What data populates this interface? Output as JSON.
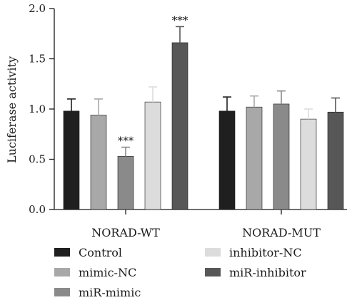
{
  "chart_data": {
    "type": "bar",
    "title": "",
    "xlabel": "",
    "ylabel": "Luciferase activity",
    "ylim": [
      0,
      2.0
    ],
    "yticks": [
      0.0,
      0.5,
      1.0,
      1.5,
      2.0
    ],
    "ytick_labels": [
      "0.0",
      "0.5",
      "1.0",
      "1.5",
      "2.0"
    ],
    "categories": [
      "NORAD-WT",
      "NORAD-MUT"
    ],
    "legend_position": "bottom",
    "grid": false,
    "series": [
      {
        "name": "Control",
        "color": "#1f1f1f",
        "values": [
          0.98,
          0.98
        ],
        "errors": [
          0.12,
          0.14
        ]
      },
      {
        "name": "mimic-NC",
        "color": "#a8a8a8",
        "values": [
          0.94,
          1.02
        ],
        "errors": [
          0.16,
          0.11
        ]
      },
      {
        "name": "miR-mimic",
        "color": "#8a8a8a",
        "values": [
          0.53,
          1.05
        ],
        "errors": [
          0.09,
          0.13
        ]
      },
      {
        "name": "inhibitor-NC",
        "color": "#dcdcdc",
        "values": [
          1.07,
          0.9
        ],
        "errors": [
          0.15,
          0.1
        ]
      },
      {
        "name": "miR-inhibitor",
        "color": "#575757",
        "values": [
          1.66,
          0.97
        ],
        "errors": [
          0.16,
          0.14
        ]
      }
    ],
    "annotations": [
      {
        "category_index": 0,
        "series_index": 2,
        "text": "***"
      },
      {
        "category_index": 0,
        "series_index": 4,
        "text": "***"
      }
    ]
  }
}
